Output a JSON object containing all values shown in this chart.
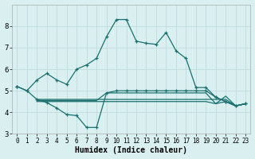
{
  "xlabel": "Humidex (Indice chaleur)",
  "xlim": [
    -0.5,
    23.5
  ],
  "ylim": [
    3,
    9
  ],
  "yticks": [
    3,
    4,
    5,
    6,
    7,
    8
  ],
  "xticks": [
    0,
    1,
    2,
    3,
    4,
    5,
    6,
    7,
    8,
    9,
    10,
    11,
    12,
    13,
    14,
    15,
    16,
    17,
    18,
    19,
    20,
    21,
    22,
    23
  ],
  "bg_color": "#daf0f0",
  "grid_color": "#c2dede",
  "line_color": "#1a7070",
  "main_curve_x": [
    0,
    1,
    2,
    3,
    4,
    5,
    6,
    7,
    8,
    9,
    10,
    11,
    12,
    13,
    14,
    15,
    16,
    17,
    18,
    19,
    20,
    21,
    22,
    23
  ],
  "main_curve_y": [
    5.2,
    5.0,
    5.5,
    5.8,
    5.5,
    5.3,
    6.0,
    6.2,
    6.5,
    7.5,
    8.3,
    8.3,
    7.3,
    7.2,
    7.15,
    7.7,
    6.85,
    6.5,
    5.15,
    5.15,
    4.7,
    4.5,
    4.3,
    4.4
  ],
  "zigzag_x": [
    0,
    1,
    2,
    3,
    4,
    5,
    6,
    7,
    8,
    9,
    10,
    11,
    12,
    13,
    14,
    15,
    16,
    17,
    18,
    19,
    20,
    21,
    22,
    23
  ],
  "zigzag_y": [
    5.2,
    5.0,
    4.6,
    4.45,
    4.2,
    3.9,
    3.85,
    3.3,
    3.3,
    4.9,
    5.0,
    5.0,
    5.0,
    5.0,
    5.0,
    5.0,
    5.0,
    5.0,
    5.0,
    5.0,
    4.7,
    4.5,
    4.3,
    4.4
  ],
  "flat1_x": [
    2,
    3,
    4,
    5,
    6,
    7,
    8,
    9,
    10,
    11,
    12,
    13,
    14,
    15,
    16,
    17,
    18,
    19,
    20,
    21,
    22,
    23
  ],
  "flat1_y": [
    4.6,
    4.6,
    4.6,
    4.6,
    4.6,
    4.6,
    4.6,
    4.6,
    4.6,
    4.6,
    4.6,
    4.6,
    4.6,
    4.6,
    4.6,
    4.6,
    4.6,
    4.6,
    4.6,
    4.6,
    4.3,
    4.4
  ],
  "flat2_x": [
    2,
    3,
    4,
    5,
    6,
    7,
    8,
    9,
    10,
    11,
    12,
    13,
    14,
    15,
    16,
    17,
    18,
    19,
    20,
    21,
    22,
    23
  ],
  "flat2_y": [
    4.55,
    4.55,
    4.55,
    4.55,
    4.55,
    4.55,
    4.55,
    4.9,
    4.9,
    4.9,
    4.9,
    4.9,
    4.9,
    4.9,
    4.9,
    4.9,
    4.9,
    4.9,
    4.4,
    4.75,
    4.3,
    4.4
  ],
  "flat3_x": [
    2,
    3,
    4,
    5,
    6,
    7,
    8,
    9,
    10,
    11,
    12,
    13,
    14,
    15,
    16,
    17,
    18,
    19,
    20,
    21,
    22,
    23
  ],
  "flat3_y": [
    4.5,
    4.5,
    4.5,
    4.5,
    4.5,
    4.5,
    4.5,
    4.5,
    4.5,
    4.5,
    4.5,
    4.5,
    4.5,
    4.5,
    4.5,
    4.5,
    4.5,
    4.5,
    4.4,
    4.5,
    4.3,
    4.4
  ]
}
